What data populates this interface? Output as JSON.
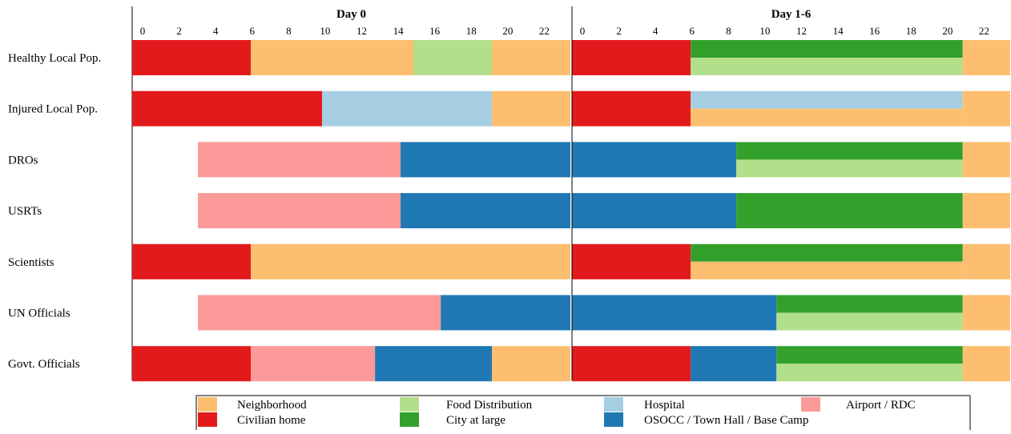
{
  "chart_data": {
    "type": "timeline",
    "panels": [
      {
        "title": "Day 0",
        "xlim": [
          0,
          24
        ],
        "ticks": [
          0,
          2,
          4,
          6,
          8,
          10,
          12,
          14,
          16,
          18,
          20,
          22
        ]
      },
      {
        "title": "Day 1-6",
        "xlim": [
          0,
          24
        ],
        "ticks": [
          0,
          2,
          4,
          6,
          8,
          10,
          12,
          14,
          16,
          18,
          20,
          22
        ]
      }
    ],
    "categories": [
      "Healthy Local Pop.",
      "Injured Local Pop.",
      "DROs",
      "USRTs",
      "Scientists",
      "UN Officials",
      "Govt. Officials"
    ],
    "locations": [
      {
        "key": "neighborhood",
        "name": "Neighborhood",
        "color": "#fdbf6f"
      },
      {
        "key": "civilian_home",
        "name": "Civilian home",
        "color": "#e31a1c"
      },
      {
        "key": "food",
        "name": "Food Distribution",
        "color": "#b2df8a"
      },
      {
        "key": "city",
        "name": "City at large",
        "color": "#33a02c"
      },
      {
        "key": "hospital",
        "name": "Hospital",
        "color": "#a6cee3"
      },
      {
        "key": "osocc",
        "name": "OSOCC / Town Hall / Base Camp",
        "color": "#1f78b4"
      },
      {
        "key": "airport",
        "name": "Airport / RDC",
        "color": "#fb9a99"
      }
    ],
    "schedules": [
      [
        [
          [
            0,
            6.5,
            "civilian_home"
          ],
          [
            6.5,
            15.4,
            "neighborhood"
          ],
          [
            15.4,
            19.7,
            "food"
          ],
          [
            19.7,
            24,
            "neighborhood"
          ]
        ],
        [
          [
            0,
            6.5,
            "civilian_home"
          ],
          [
            6.5,
            21.4,
            "city",
            "food"
          ],
          [
            21.4,
            24,
            "neighborhood"
          ]
        ]
      ],
      [
        [
          [
            0,
            10.4,
            "civilian_home"
          ],
          [
            10.4,
            19.7,
            "hospital"
          ],
          [
            19.7,
            24,
            "neighborhood"
          ]
        ],
        [
          [
            0,
            6.5,
            "civilian_home"
          ],
          [
            6.5,
            21.4,
            "hospital",
            "neighborhood"
          ],
          [
            21.4,
            24,
            "neighborhood"
          ]
        ]
      ],
      [
        [
          [
            3.6,
            14.7,
            "airport"
          ],
          [
            14.7,
            24,
            "osocc"
          ]
        ],
        [
          [
            0,
            9.0,
            "osocc"
          ],
          [
            9.0,
            21.4,
            "city",
            "food"
          ],
          [
            21.4,
            24,
            "neighborhood"
          ]
        ]
      ],
      [
        [
          [
            3.6,
            14.7,
            "airport"
          ],
          [
            14.7,
            24,
            "osocc"
          ]
        ],
        [
          [
            0,
            9.0,
            "osocc"
          ],
          [
            9.0,
            21.4,
            "city"
          ],
          [
            21.4,
            24,
            "neighborhood"
          ]
        ]
      ],
      [
        [
          [
            0,
            6.5,
            "civilian_home"
          ],
          [
            6.5,
            24,
            "neighborhood"
          ]
        ],
        [
          [
            0,
            6.5,
            "civilian_home"
          ],
          [
            6.5,
            21.4,
            "city",
            "neighborhood"
          ],
          [
            21.4,
            24,
            "neighborhood"
          ]
        ]
      ],
      [
        [
          [
            3.6,
            16.9,
            "airport"
          ],
          [
            16.9,
            24,
            "osocc"
          ]
        ],
        [
          [
            0,
            11.2,
            "osocc"
          ],
          [
            11.2,
            21.4,
            "city",
            "food"
          ],
          [
            21.4,
            24,
            "neighborhood"
          ]
        ]
      ],
      [
        [
          [
            0,
            6.5,
            "civilian_home"
          ],
          [
            6.5,
            13.3,
            "airport"
          ],
          [
            13.3,
            19.7,
            "osocc"
          ],
          [
            19.7,
            24,
            "neighborhood"
          ]
        ],
        [
          [
            0,
            6.5,
            "civilian_home"
          ],
          [
            6.5,
            11.2,
            "osocc"
          ],
          [
            11.2,
            21.4,
            "city",
            "food"
          ],
          [
            21.4,
            24,
            "neighborhood"
          ]
        ]
      ]
    ],
    "legend_order": [
      "neighborhood",
      "food",
      "hospital",
      "airport",
      "civilian_home",
      "city",
      "osocc"
    ],
    "legend_placement": "bottom"
  }
}
